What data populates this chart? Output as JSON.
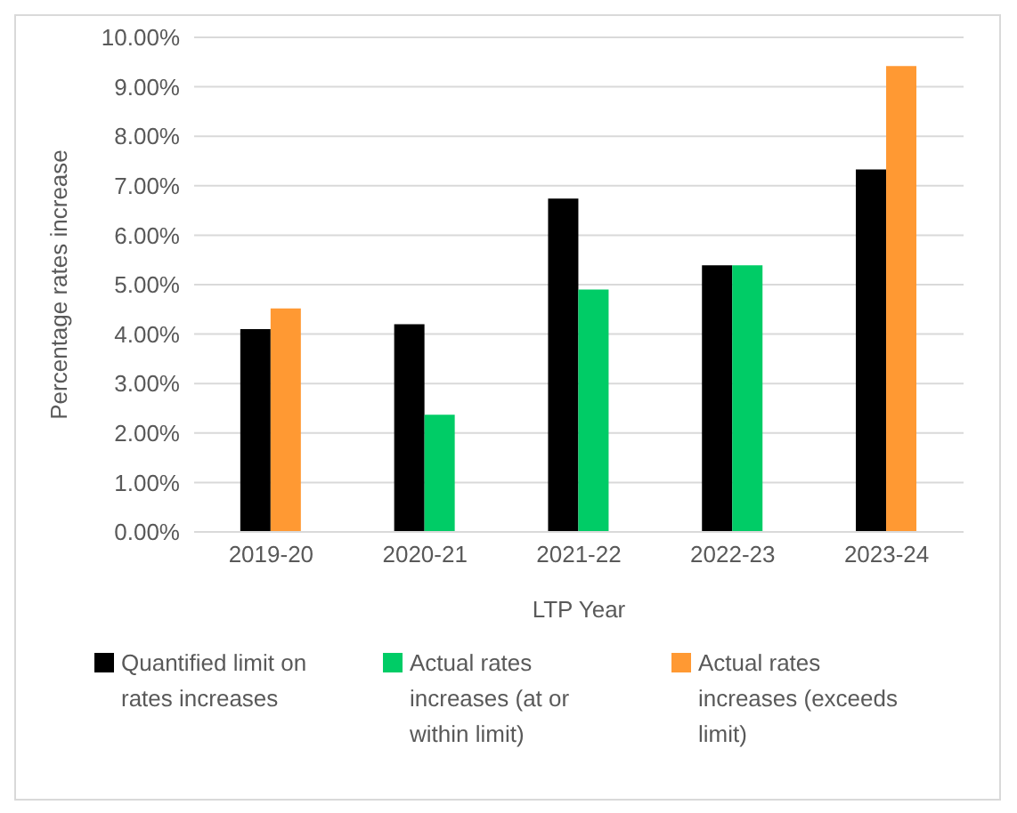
{
  "chart_data": {
    "type": "bar",
    "xlabel": "LTP Year",
    "ylabel": "Percentage rates increase",
    "categories": [
      "2019-20",
      "2020-21",
      "2021-22",
      "2022-23",
      "2023-24"
    ],
    "series": [
      {
        "name": "Quantified limit on rates increases",
        "color": "#000000",
        "values": [
          4.1,
          4.2,
          6.74,
          5.39,
          7.33
        ]
      },
      {
        "name": "Actual rates increases (at or within limit)",
        "color": "#00cc66",
        "values": [
          null,
          2.37,
          4.9,
          5.39,
          null
        ]
      },
      {
        "name": "Actual rates increases (exceeds limit)",
        "color": "#ff9933",
        "values": [
          4.52,
          null,
          null,
          null,
          9.42
        ]
      }
    ],
    "ylim": [
      0,
      10
    ],
    "yticks": [
      {
        "value": 0,
        "label": "0.00%"
      },
      {
        "value": 1,
        "label": "1.00%"
      },
      {
        "value": 2,
        "label": "2.00%"
      },
      {
        "value": 3,
        "label": "3.00%"
      },
      {
        "value": 4,
        "label": "4.00%"
      },
      {
        "value": 5,
        "label": "5.00%"
      },
      {
        "value": 6,
        "label": "6.00%"
      },
      {
        "value": 7,
        "label": "7.00%"
      },
      {
        "value": 8,
        "label": "8.00%"
      },
      {
        "value": 9,
        "label": "9.00%"
      },
      {
        "value": 10,
        "label": "10.00%"
      }
    ],
    "grid": "y",
    "legend": "bottom"
  }
}
